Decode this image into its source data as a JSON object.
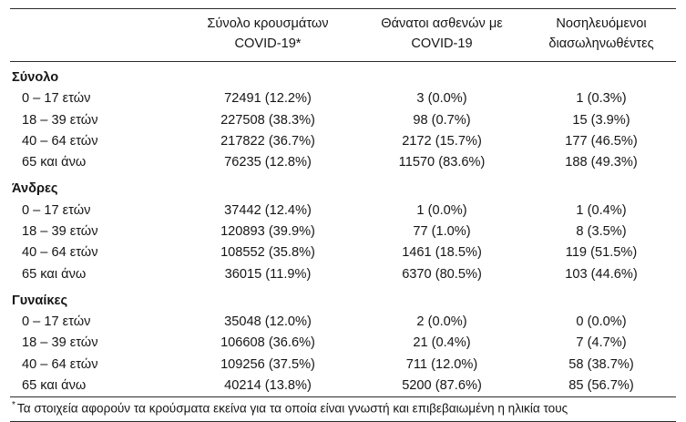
{
  "table": {
    "headers": {
      "cases": {
        "line1": "Σύνολο κρουσμάτων",
        "line2": "COVID-19*"
      },
      "deaths": {
        "line1": "Θάνατοι ασθενών με",
        "line2": "COVID-19"
      },
      "intubated": {
        "line1": "Νοσηλευόμενοι",
        "line2": "διασωληνωθέντες"
      }
    },
    "groups": [
      {
        "label": "Σύνολο",
        "rows": [
          {
            "label": "0 – 17 ετών",
            "cases": "72491 (12.2%)",
            "deaths": "3 (0.0%)",
            "intubated": "1 (0.3%)"
          },
          {
            "label": "18 – 39 ετών",
            "cases": "227508 (38.3%)",
            "deaths": "98 (0.7%)",
            "intubated": "15 (3.9%)"
          },
          {
            "label": "40 – 64 ετών",
            "cases": "217822 (36.7%)",
            "deaths": "2172 (15.7%)",
            "intubated": "177 (46.5%)"
          },
          {
            "label": "65 και άνω",
            "cases": "76235 (12.8%)",
            "deaths": "11570 (83.6%)",
            "intubated": "188 (49.3%)"
          }
        ]
      },
      {
        "label": "Άνδρες",
        "rows": [
          {
            "label": "0 – 17 ετών",
            "cases": "37442 (12.4%)",
            "deaths": "1 (0.0%)",
            "intubated": "1 (0.4%)"
          },
          {
            "label": "18 – 39 ετών",
            "cases": "120893 (39.9%)",
            "deaths": "77 (1.0%)",
            "intubated": "8 (3.5%)"
          },
          {
            "label": "40 – 64 ετών",
            "cases": "108552 (35.8%)",
            "deaths": "1461 (18.5%)",
            "intubated": "119 (51.5%)"
          },
          {
            "label": "65 και άνω",
            "cases": "36015 (11.9%)",
            "deaths": "6370 (80.5%)",
            "intubated": "103 (44.6%)"
          }
        ]
      },
      {
        "label": "Γυναίκες",
        "rows": [
          {
            "label": "0 – 17 ετών",
            "cases": "35048 (12.0%)",
            "deaths": "2 (0.0%)",
            "intubated": "0 (0.0%)"
          },
          {
            "label": "18 – 39 ετών",
            "cases": "106608 (36.6%)",
            "deaths": "21 (0.4%)",
            "intubated": "7 (4.7%)"
          },
          {
            "label": "40 – 64 ετών",
            "cases": "109256 (37.5%)",
            "deaths": "711 (12.0%)",
            "intubated": "58 (38.7%)"
          },
          {
            "label": "65 και άνω",
            "cases": "40214 (13.8%)",
            "deaths": "5200 (87.6%)",
            "intubated": "85 (56.7%)"
          }
        ]
      }
    ],
    "footnote_marker": "*",
    "footnote_text": "Τα στοιχεία αφορούν τα κρούσματα εκείνα για τα οποία είναι γνωστή και επιβεβαιωμένη η ηλικία τους"
  }
}
